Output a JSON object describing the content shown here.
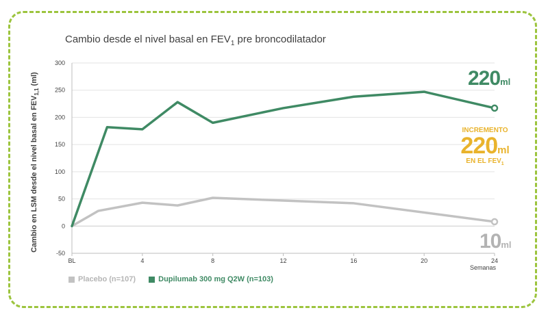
{
  "chart_data": {
    "type": "line",
    "title": "Cambio desde el nivel basal en FEV",
    "title_sub": "1",
    "title_tail": " pre broncodilatador",
    "ylabel": "Cambio en LSM desde el nivel basal en FEV",
    "ylabel_sub": "1,1",
    "ylabel_tail": " (ml)",
    "xlabel": "Semanas",
    "ylim": [
      -50,
      300
    ],
    "xlim": [
      0,
      24
    ],
    "yticks": [
      -50,
      0,
      50,
      100,
      150,
      200,
      250,
      300
    ],
    "xticks": [
      0,
      4,
      8,
      12,
      16,
      20,
      24
    ],
    "xtick_labels": [
      "BL",
      "4",
      "8",
      "12",
      "16",
      "20",
      "24"
    ],
    "grid": true,
    "legend_position": "bottom-left",
    "series": [
      {
        "name": "Placebo (n=107)",
        "color": "#c2c2c2",
        "x": [
          0,
          1.5,
          4,
          6,
          8,
          16,
          24
        ],
        "y": [
          0,
          28,
          43,
          38,
          52,
          42,
          8
        ]
      },
      {
        "name": "Dupilumab 300 mg Q2W (n=103)",
        "color": "#3f8a64",
        "x": [
          0,
          2,
          4,
          6,
          8,
          12,
          16,
          20,
          24
        ],
        "y": [
          0,
          182,
          178,
          228,
          190,
          217,
          238,
          247,
          217
        ]
      }
    ],
    "annotations": {
      "dupilumab_end": {
        "value": "220",
        "unit": "ml"
      },
      "placebo_end": {
        "value": "10",
        "unit": "ml"
      },
      "increment": {
        "line1": "INCREMENTO",
        "value": "220",
        "unit": "ml",
        "line3": "EN EL FEV",
        "line3_sub": "1"
      }
    }
  }
}
